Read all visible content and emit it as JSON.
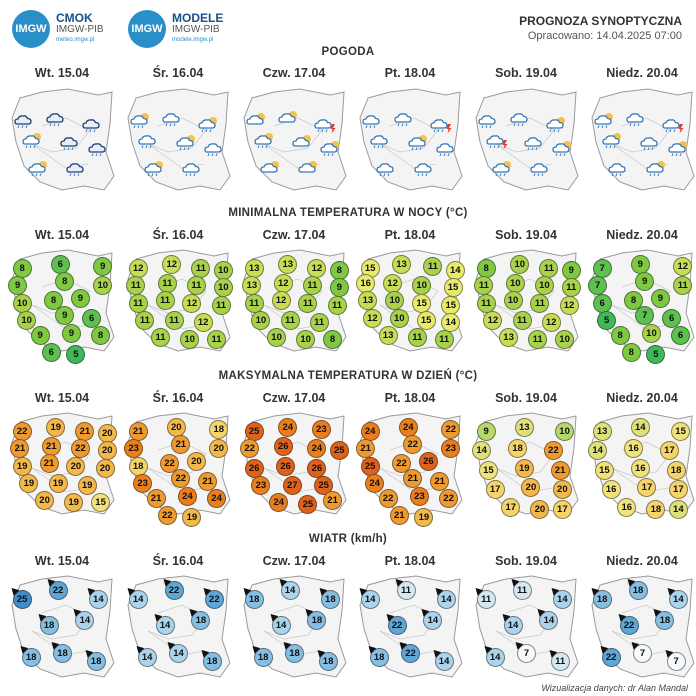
{
  "header": {
    "logo1": {
      "abbr": "IMGW",
      "name": "CMOK",
      "sub": "IMGW-PIB",
      "url": "meteo.imgw.pl"
    },
    "logo2": {
      "abbr": "IMGW",
      "name": "MODELE",
      "sub": "IMGW-PIB",
      "url": "modele.imgw.pl"
    },
    "title": "PROGNOZA SYNOPTYCZNA",
    "subtitle": "Opracowano: 14.04.2025 07:00"
  },
  "days": [
    "Wt. 15.04",
    "Śr. 16.04",
    "Czw. 17.04",
    "Pt. 18.04",
    "Sob. 19.04",
    "Niedz. 20.04"
  ],
  "sections": {
    "weather": "POGODA",
    "tmin": "MINIMALNA TEMPERATURA W NOCY (°C)",
    "tmax": "MAKSYMALNA TEMPERATURA W DZIEŃ (°C)",
    "wind": "WIATR (km/h)"
  },
  "weather_icons": [
    [
      "cloud-rain-dark-icon",
      "cloud-rain-dark-icon",
      "cloud-rain-dark-icon",
      "sun-cloud-rain-icon",
      "cloud-rain-dark-icon",
      "cloud-rain-dark-icon",
      "sun-cloud-rain-icon",
      "cloud-rain-dark-icon"
    ],
    [
      "sun-cloud-rain-icon",
      "cloud-rain-icon",
      "sun-cloud-rain-icon",
      "cloud-rain-icon",
      "sun-cloud-rain-icon",
      "cloud-rain-icon",
      "sun-cloud-rain-icon",
      "cloud-rain-icon"
    ],
    [
      "sun-cloud-icon",
      "sun-cloud-icon",
      "cloud-rain-storm-icon",
      "sun-cloud-rain-icon",
      "sun-cloud-icon",
      "sun-cloud-rain-icon",
      "sun-cloud-icon",
      "sun-cloud-icon"
    ],
    [
      "cloud-rain-icon",
      "cloud-rain-icon",
      "cloud-rain-storm-icon",
      "cloud-rain-icon",
      "sun-cloud-rain-icon",
      "cloud-rain-icon",
      "cloud-rain-icon",
      "cloud-rain-icon"
    ],
    [
      "cloud-rain-icon",
      "cloud-rain-icon",
      "sun-cloud-rain-icon",
      "cloud-rain-storm-icon",
      "cloud-rain-icon",
      "sun-cloud-rain-icon",
      "sun-cloud-rain-icon",
      "cloud-rain-icon"
    ],
    [
      "sun-cloud-rain-icon",
      "cloud-rain-icon",
      "cloud-rain-storm-icon",
      "sun-cloud-rain-icon",
      "cloud-rain-icon",
      "sun-cloud-rain-icon",
      "cloud-rain-icon",
      "sun-cloud-rain-icon"
    ]
  ],
  "tmin": [
    [
      "8",
      "6",
      "9",
      "9",
      "8",
      "10",
      "10",
      "8",
      "9",
      "10",
      "9",
      "6",
      "9",
      "9",
      "8",
      "6",
      "5"
    ],
    [
      "12",
      "12",
      "11",
      "10",
      "11",
      "11",
      "11",
      "10",
      "11",
      "11",
      "12",
      "11",
      "11",
      "11",
      "12",
      "11",
      "10",
      "11"
    ],
    [
      "13",
      "13",
      "12",
      "8",
      "13",
      "12",
      "11",
      "9",
      "11",
      "12",
      "11",
      "11",
      "10",
      "11",
      "11",
      "10",
      "10",
      "8"
    ],
    [
      "15",
      "13",
      "11",
      "14",
      "16",
      "12",
      "10",
      "15",
      "13",
      "10",
      "15",
      "15",
      "12",
      "10",
      "15",
      "14",
      "13",
      "11",
      "11"
    ],
    [
      "8",
      "10",
      "11",
      "9",
      "11",
      "10",
      "10",
      "11",
      "11",
      "10",
      "11",
      "12",
      "12",
      "11",
      "12",
      "13",
      "11",
      "10"
    ],
    [
      "7",
      "9",
      "12",
      "7",
      "9",
      "11",
      "6",
      "8",
      "9",
      "5",
      "7",
      "6",
      "8",
      "10",
      "6",
      "8",
      "5"
    ]
  ],
  "tmax": [
    [
      "22",
      "19",
      "21",
      "20",
      "21",
      "21",
      "22",
      "20",
      "19",
      "21",
      "20",
      "20",
      "19",
      "19",
      "19",
      "20",
      "19",
      "15"
    ],
    [
      "21",
      "20",
      "18",
      "23",
      "21",
      "20",
      "18",
      "22",
      "20",
      "23",
      "22",
      "21",
      "21",
      "24",
      "24",
      "22",
      "19"
    ],
    [
      "25",
      "24",
      "23",
      "22",
      "26",
      "24",
      "25",
      "26",
      "26",
      "26",
      "23",
      "27",
      "25",
      "24",
      "25",
      "21"
    ],
    [
      "24",
      "24",
      "22",
      "21",
      "22",
      "23",
      "25",
      "22",
      "26",
      "24",
      "21",
      "21",
      "22",
      "23",
      "22",
      "21",
      "19"
    ],
    [
      "9",
      "13",
      "10",
      "14",
      "18",
      "22",
      "15",
      "19",
      "21",
      "17",
      "20",
      "20",
      "17",
      "20",
      "17"
    ],
    [
      "13",
      "14",
      "15",
      "14",
      "16",
      "17",
      "15",
      "16",
      "18",
      "16",
      "17",
      "17",
      "16",
      "18",
      "14"
    ]
  ],
  "wind": [
    [
      "25",
      "22",
      "14",
      "18",
      "14",
      "18",
      "18",
      "18"
    ],
    [
      "14",
      "22",
      "22",
      "14",
      "18",
      "14",
      "14",
      "18"
    ],
    [
      "18",
      "14",
      "18",
      "14",
      "18",
      "18",
      "18",
      "18"
    ],
    [
      "14",
      "11",
      "14",
      "22",
      "14",
      "18",
      "22",
      "14"
    ],
    [
      "11",
      "11",
      "14",
      "14",
      "14",
      "14",
      "7",
      "11"
    ],
    [
      "18",
      "18",
      "14",
      "22",
      "18",
      "22",
      "7",
      "7"
    ]
  ],
  "footer": "Wizualizacja danych: dr Alan Mandal"
}
